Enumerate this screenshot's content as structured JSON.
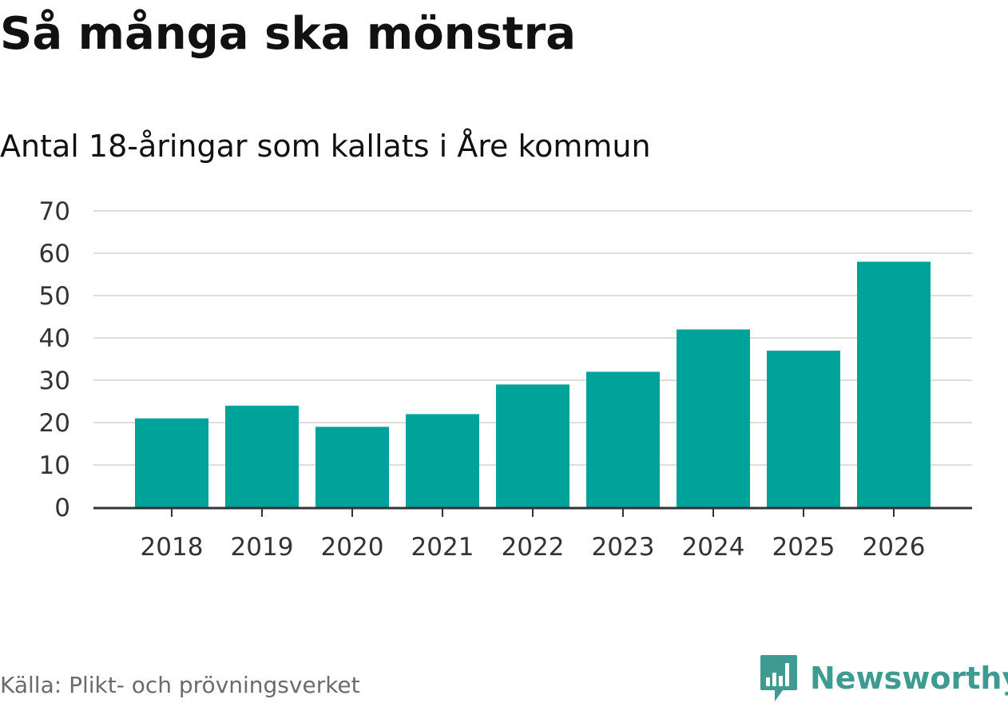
{
  "header": {
    "title": "Så många ska mönstra",
    "subtitle": "Antal 18-åringar som kallats i Åre kommun"
  },
  "footer": {
    "source": "Källa: Plikt- och prövningsverket",
    "brand": "Newsworthy"
  },
  "colors": {
    "bar": "#00a39a",
    "grid": "#dddddd",
    "axis": "#333333",
    "brand": "#3f9a92"
  },
  "chart_data": {
    "type": "bar",
    "title": "Så många ska mönstra",
    "subtitle": "Antal 18-åringar som kallats i Åre kommun",
    "xlabel": "",
    "ylabel": "",
    "categories": [
      "2018",
      "2019",
      "2020",
      "2021",
      "2022",
      "2023",
      "2024",
      "2025",
      "2026"
    ],
    "values": [
      21,
      24,
      19,
      22,
      29,
      32,
      42,
      37,
      58
    ],
    "ylim": [
      0,
      70
    ],
    "yticks": [
      0,
      10,
      20,
      30,
      40,
      50,
      60,
      70
    ],
    "grid": true,
    "legend": "none"
  }
}
